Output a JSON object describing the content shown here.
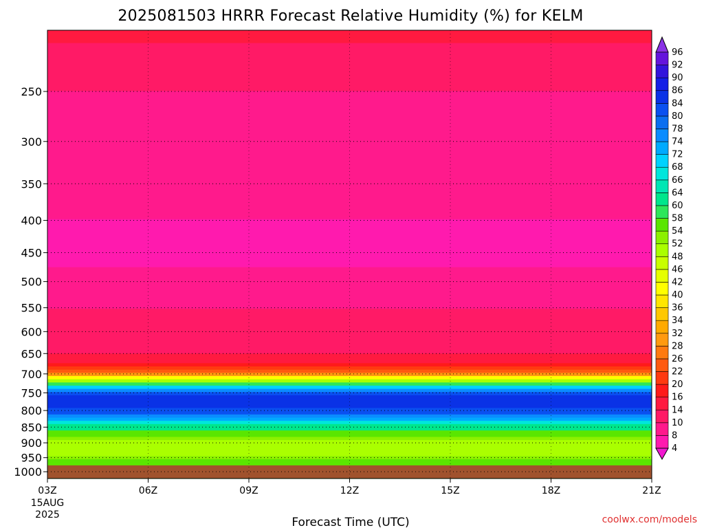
{
  "chart_data": {
    "type": "heatmap",
    "title": "2025081503 HRRR Forecast Relative Humidity (%) for KELM",
    "xlabel": "Forecast Time (UTC)",
    "ylabel": "",
    "x_ticks": [
      "03Z",
      "06Z",
      "09Z",
      "12Z",
      "15Z",
      "18Z",
      "21Z"
    ],
    "x_hours": [
      3,
      6,
      9,
      12,
      15,
      18,
      21
    ],
    "x_first_date": [
      "15AUG",
      "2025"
    ],
    "xlim": [
      3,
      21
    ],
    "y_ticks": [
      250,
      300,
      350,
      400,
      450,
      500,
      550,
      600,
      650,
      700,
      750,
      800,
      850,
      900,
      950,
      1000
    ],
    "ylim": [
      1025,
      200
    ],
    "y_scale": "log-pressure",
    "grid": true,
    "surface_pressure": 977,
    "surface_color": "#a0522d",
    "colorbar": {
      "position": "right",
      "levels": [
        4,
        8,
        10,
        14,
        16,
        20,
        22,
        26,
        28,
        32,
        34,
        36,
        40,
        42,
        46,
        48,
        52,
        54,
        58,
        60,
        64,
        66,
        68,
        72,
        74,
        78,
        80,
        84,
        86,
        90,
        92,
        96
      ],
      "colors": [
        "#f218d0",
        "#ff1aae",
        "#ff1a8c",
        "#ff1a66",
        "#ff1a40",
        "#ff1a1a",
        "#ff3a10",
        "#ff5a10",
        "#ff7a10",
        "#ff9a10",
        "#ffaa00",
        "#ffc800",
        "#ffe600",
        "#ffff00",
        "#e6ff00",
        "#c8ff00",
        "#aaff00",
        "#8cf000",
        "#5ae600",
        "#2ee65a",
        "#00e68c",
        "#00e6b4",
        "#00e6dc",
        "#00d2ff",
        "#00aaff",
        "#0a8cff",
        "#0a6ef0",
        "#0a50f0",
        "#0a32e6",
        "#141ee6",
        "#3214dc",
        "#6414dc",
        "#8a32e6"
      ]
    },
    "rh_profile": [
      {
        "p": 200,
        "rh": 15
      },
      {
        "p": 250,
        "rh": 10
      },
      {
        "p": 300,
        "rh": 9
      },
      {
        "p": 350,
        "rh": 10
      },
      {
        "p": 400,
        "rh": 8
      },
      {
        "p": 450,
        "rh": 7
      },
      {
        "p": 500,
        "rh": 9
      },
      {
        "p": 550,
        "rh": 10
      },
      {
        "p": 600,
        "rh": 11
      },
      {
        "p": 650,
        "rh": 14
      },
      {
        "p": 680,
        "rh": 17
      },
      {
        "p": 700,
        "rh": 30
      },
      {
        "p": 720,
        "rh": 52
      },
      {
        "p": 740,
        "rh": 74
      },
      {
        "p": 760,
        "rh": 84
      },
      {
        "p": 790,
        "rh": 86
      },
      {
        "p": 810,
        "rh": 80
      },
      {
        "p": 830,
        "rh": 70
      },
      {
        "p": 850,
        "rh": 62
      },
      {
        "p": 880,
        "rh": 54
      },
      {
        "p": 910,
        "rh": 50
      },
      {
        "p": 940,
        "rh": 52
      },
      {
        "p": 975,
        "rh": 58
      }
    ]
  },
  "credit": "coolwx.com/models"
}
